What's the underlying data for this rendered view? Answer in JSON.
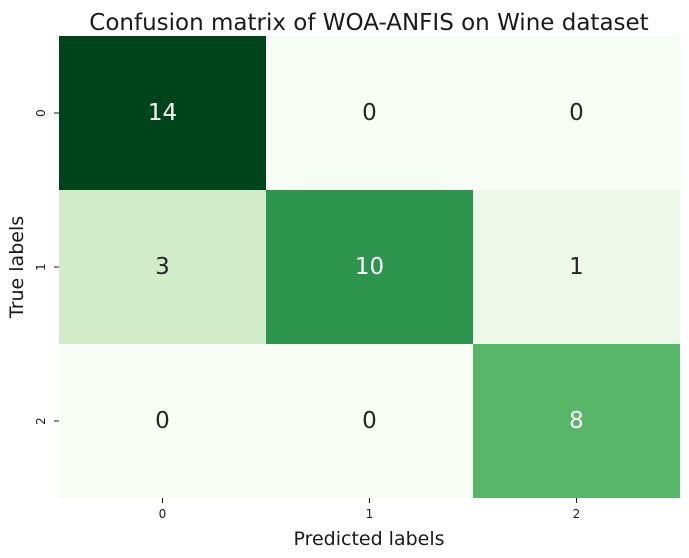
{
  "chart_data": {
    "type": "heatmap",
    "title": "Confusion matrix of WOA-ANFIS on Wine dataset",
    "xlabel": "Predicted labels",
    "ylabel": "True labels",
    "x_categories": [
      "0",
      "1",
      "2"
    ],
    "y_categories": [
      "0",
      "1",
      "2"
    ],
    "matrix": [
      [
        14,
        0,
        0
      ],
      [
        3,
        10,
        1
      ],
      [
        0,
        0,
        8
      ]
    ],
    "colormap": "Greens",
    "value_range": [
      0,
      14
    ],
    "colors": {
      "low": "#f7fcf5",
      "high": "#00441b",
      "text_dark": "#262626",
      "text_light": "#ffffff"
    }
  }
}
